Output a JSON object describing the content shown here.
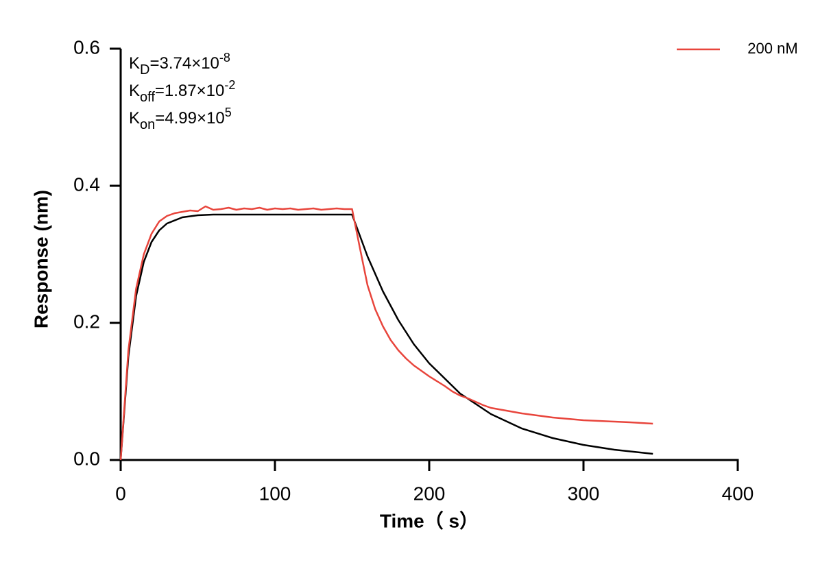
{
  "chart_data": {
    "type": "line",
    "x_label": "Time（ s）",
    "y_label": "Response (nm)",
    "xlim": [
      0,
      400
    ],
    "xticks": [
      0,
      100,
      200,
      300,
      400
    ],
    "ylim": [
      0,
      0.6
    ],
    "yticks": [
      {
        "value": 0,
        "label": "0.0"
      },
      0.2,
      0.4,
      0.6
    ],
    "legend_position": "upper right",
    "annotations": [
      {
        "main": "K",
        "sub": "D",
        "text": "=3.74×10",
        "sup": "-8"
      },
      {
        "main": "K",
        "sub": "off",
        "text": "=1.87×10",
        "sup": "-2"
      },
      {
        "main": "K",
        "sub": "on",
        "text": "=4.99×10",
        "sup": "5"
      }
    ],
    "series": [
      {
        "name": "200 nM",
        "color": "#e8453c",
        "x": [
          0,
          5,
          10,
          15,
          20,
          25,
          30,
          35,
          40,
          45,
          50,
          55,
          60,
          65,
          70,
          75,
          80,
          85,
          90,
          95,
          100,
          105,
          110,
          115,
          120,
          125,
          130,
          135,
          140,
          145,
          150,
          155,
          160,
          165,
          170,
          175,
          180,
          185,
          190,
          195,
          200,
          205,
          210,
          215,
          220,
          225,
          230,
          235,
          240,
          250,
          260,
          270,
          280,
          290,
          300,
          310,
          320,
          330,
          345
        ],
        "values": [
          0,
          0.16,
          0.25,
          0.3,
          0.33,
          0.348,
          0.356,
          0.36,
          0.362,
          0.364,
          0.363,
          0.37,
          0.365,
          0.366,
          0.368,
          0.365,
          0.367,
          0.366,
          0.368,
          0.365,
          0.367,
          0.366,
          0.367,
          0.365,
          0.366,
          0.367,
          0.365,
          0.366,
          0.367,
          0.366,
          0.366,
          0.31,
          0.255,
          0.22,
          0.195,
          0.175,
          0.16,
          0.148,
          0.138,
          0.13,
          0.122,
          0.115,
          0.108,
          0.1,
          0.094,
          0.09,
          0.085,
          0.08,
          0.076,
          0.072,
          0.068,
          0.065,
          0.062,
          0.06,
          0.058,
          0.057,
          0.056,
          0.055,
          0.053
        ]
      },
      {
        "color": "#000000",
        "x": [
          0,
          5,
          10,
          15,
          20,
          25,
          30,
          40,
          50,
          60,
          80,
          100,
          120,
          150,
          160,
          170,
          180,
          190,
          200,
          220,
          240,
          260,
          280,
          300,
          320,
          345
        ],
        "values": [
          0,
          0.151,
          0.239,
          0.289,
          0.318,
          0.335,
          0.345,
          0.354,
          0.357,
          0.358,
          0.358,
          0.358,
          0.358,
          0.358,
          0.297,
          0.246,
          0.204,
          0.169,
          0.141,
          0.097,
          0.067,
          0.046,
          0.032,
          0.022,
          0.015,
          0.009
        ]
      }
    ]
  }
}
